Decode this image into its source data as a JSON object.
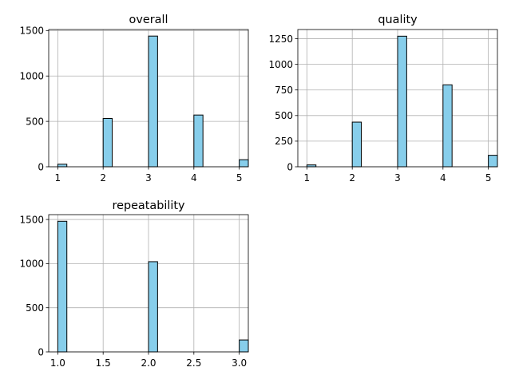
{
  "chart_data": [
    {
      "type": "bar",
      "title": "overall",
      "x": [
        1,
        2,
        3,
        4,
        5
      ],
      "values": [
        28,
        532,
        1440,
        570,
        78
      ],
      "xlim": [
        0.8,
        5.2
      ],
      "ylim": [
        0,
        1512
      ],
      "xticks": [
        1,
        2,
        3,
        4,
        5
      ],
      "xtick_labels": [
        "1",
        "2",
        "3",
        "4",
        "5"
      ],
      "yticks": [
        0,
        500,
        1000,
        1500
      ],
      "ytick_labels": [
        "0",
        "500",
        "1000",
        "1500"
      ],
      "bin_width": 0.2,
      "grid": true
    },
    {
      "type": "bar",
      "title": "quality",
      "x": [
        1,
        2,
        3,
        4,
        5
      ],
      "values": [
        18,
        436,
        1275,
        800,
        112
      ],
      "xlim": [
        0.8,
        5.2
      ],
      "ylim": [
        0,
        1340
      ],
      "xticks": [
        1,
        2,
        3,
        4,
        5
      ],
      "xtick_labels": [
        "1",
        "2",
        "3",
        "4",
        "5"
      ],
      "yticks": [
        0,
        250,
        500,
        750,
        1000,
        1250
      ],
      "ytick_labels": [
        "0",
        "250",
        "500",
        "750",
        "1000",
        "1250"
      ],
      "bin_width": 0.2,
      "grid": true
    },
    {
      "type": "bar",
      "title": "repeatability",
      "x": [
        1,
        2,
        3
      ],
      "values": [
        1480,
        1022,
        135
      ],
      "xlim": [
        0.9,
        3.1
      ],
      "ylim": [
        0,
        1555
      ],
      "xticks": [
        1.0,
        1.5,
        2.0,
        2.5,
        3.0
      ],
      "xtick_labels": [
        "1.0",
        "1.5",
        "2.0",
        "2.5",
        "3.0"
      ],
      "yticks": [
        0,
        500,
        1000,
        1500
      ],
      "ytick_labels": [
        "0",
        "500",
        "1000",
        "1500"
      ],
      "bin_width": 0.1,
      "grid": true
    }
  ],
  "colors": {
    "bar_fill": "#87ceeb",
    "bar_edge": "#000000",
    "grid": "#b0b0b0"
  }
}
